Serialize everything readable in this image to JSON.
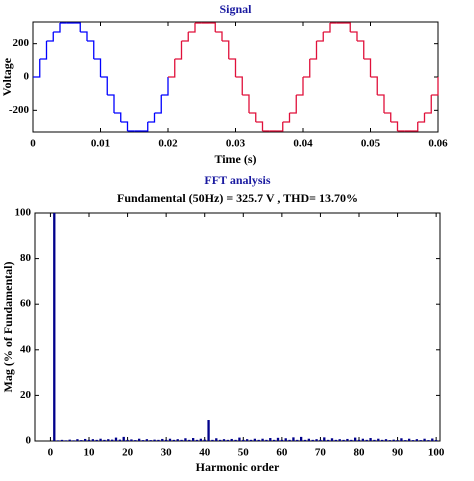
{
  "chart_data": [
    {
      "type": "line",
      "title": "Signal",
      "x_label": "Time (s)",
      "y_label": "Voltage",
      "xlim": [
        0,
        0.06
      ],
      "xticks": [
        0,
        0.01,
        0.02,
        0.03,
        0.04,
        0.05,
        0.06
      ],
      "ylim": [
        -330,
        330
      ],
      "yticks": [
        -200,
        0,
        200
      ],
      "step": "post",
      "series": [
        {
          "color": "#0000ff",
          "x": [
            0,
            0.001,
            0.002,
            0.003,
            0.004,
            0.005,
            0.006,
            0.007,
            0.008,
            0.009,
            0.01,
            0.011,
            0.012,
            0.013,
            0.014,
            0.015,
            0.016,
            0.017,
            0.018,
            0.019,
            0.02
          ],
          "values": [
            0,
            108,
            216,
            270,
            324,
            324,
            324,
            270,
            216,
            108,
            0,
            -108,
            -216,
            -270,
            -324,
            -324,
            -324,
            -270,
            -216,
            -108,
            0
          ]
        },
        {
          "color": "#e0103a",
          "x": [
            0.02,
            0.021,
            0.022,
            0.023,
            0.024,
            0.025,
            0.026,
            0.027,
            0.028,
            0.029,
            0.03,
            0.031,
            0.032,
            0.033,
            0.034,
            0.035,
            0.036,
            0.037,
            0.038,
            0.039,
            0.04,
            0.041,
            0.042,
            0.043,
            0.044,
            0.045,
            0.046,
            0.047,
            0.048,
            0.049,
            0.05,
            0.051,
            0.052,
            0.053,
            0.054,
            0.055,
            0.056,
            0.057,
            0.058,
            0.059,
            0.06
          ],
          "values": [
            0,
            108,
            216,
            270,
            324,
            324,
            324,
            270,
            216,
            108,
            0,
            -108,
            -216,
            -270,
            -324,
            -324,
            -324,
            -270,
            -216,
            -108,
            0,
            108,
            216,
            270,
            324,
            324,
            324,
            270,
            216,
            108,
            0,
            -108,
            -216,
            -270,
            -324,
            -324,
            -324,
            -270,
            -216,
            -108,
            0
          ]
        }
      ]
    },
    {
      "type": "bar",
      "title": "FFT analysis",
      "subtitle": "Fundamental (50Hz) = 325.7 V , THD= 13.70%",
      "x_label": "Harmonic order",
      "y_label": "Mag (% of Fundamental)",
      "xlim": [
        -4,
        101
      ],
      "xticks": [
        0,
        10,
        20,
        30,
        40,
        50,
        60,
        70,
        80,
        90,
        100
      ],
      "ylim": [
        0,
        100
      ],
      "yticks": [
        0,
        20,
        40,
        60,
        80,
        100
      ],
      "color": "#00008b",
      "x": [
        0,
        1,
        2,
        3,
        4,
        5,
        6,
        7,
        8,
        9,
        10,
        11,
        12,
        13,
        14,
        15,
        16,
        17,
        18,
        19,
        20,
        21,
        22,
        23,
        24,
        25,
        26,
        27,
        28,
        29,
        30,
        31,
        32,
        33,
        34,
        35,
        36,
        37,
        38,
        39,
        40,
        41,
        42,
        43,
        44,
        45,
        46,
        47,
        48,
        49,
        50,
        51,
        52,
        53,
        54,
        55,
        56,
        57,
        58,
        59,
        60,
        61,
        62,
        63,
        64,
        65,
        66,
        67,
        68,
        69,
        70,
        71,
        72,
        73,
        74,
        75,
        76,
        77,
        78,
        79,
        80,
        81,
        82,
        83,
        84,
        85,
        86,
        87,
        88,
        89,
        90,
        91,
        92,
        93,
        94,
        95,
        96,
        97,
        98,
        99,
        100
      ],
      "values": [
        0,
        100,
        0.3,
        0.5,
        0.3,
        0.6,
        0.3,
        0.8,
        0.4,
        0.9,
        0.5,
        0.8,
        0.5,
        1.0,
        0.5,
        0.8,
        0.6,
        1.5,
        0.6,
        1.8,
        0.5,
        0.7,
        0.4,
        1.0,
        0.4,
        0.8,
        0.4,
        0.6,
        0.5,
        0.9,
        0.5,
        1.0,
        0.5,
        0.8,
        0.5,
        1.2,
        0.5,
        1.3,
        0.5,
        1.0,
        0.6,
        9.2,
        0.5,
        1.2,
        0.5,
        0.8,
        0.5,
        0.9,
        0.5,
        1.5,
        0.5,
        0.8,
        0.5,
        1.0,
        0.5,
        1.0,
        0.5,
        1.3,
        0.5,
        1.4,
        0.5,
        1.2,
        0.5,
        1.6,
        0.5,
        1.8,
        0.5,
        1.0,
        0.5,
        0.8,
        0.5,
        1.6,
        0.5,
        1.2,
        0.5,
        0.8,
        0.5,
        0.9,
        0.5,
        1.5,
        0.5,
        1.0,
        0.5,
        1.3,
        0.5,
        1.0,
        0.5,
        0.8,
        0.4,
        0.6,
        0.4,
        1.2,
        0.4,
        1.0,
        0.4,
        0.8,
        0.4,
        1.0,
        0.4,
        1.1,
        0.4
      ]
    }
  ]
}
